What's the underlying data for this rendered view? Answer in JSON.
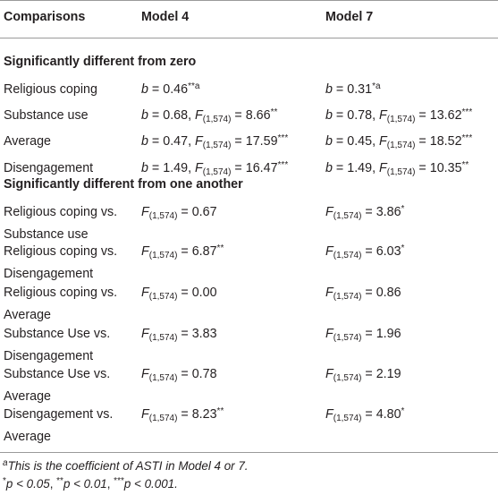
{
  "headers": [
    "Comparisons",
    "Model 4",
    "Model 7"
  ],
  "sections": [
    {
      "title": "Significantly different from zero",
      "rows": [
        {
          "label": [
            "Religious coping"
          ],
          "m4": {
            "var": "b",
            "val": "0.46",
            "sup": "**a"
          },
          "m7": {
            "var": "b",
            "val": "0.31",
            "sup": "*a"
          }
        },
        {
          "label": [
            "Substance use"
          ],
          "m4": {
            "var": "b",
            "val": "0.68",
            "F": "(1,574)",
            "fval": "8.66",
            "sup": "**"
          },
          "m7": {
            "var": "b",
            "val": "0.78",
            "F": "(1,574)",
            "fval": "13.62",
            "sup": "***"
          }
        },
        {
          "label": [
            "Average"
          ],
          "m4": {
            "var": "b",
            "val": "0.47",
            "F": "(1,574)",
            "fval": "17.59",
            "sup": "***"
          },
          "m7": {
            "var": "b",
            "val": "0.45",
            "F": "(1,574)",
            "fval": "18.52",
            "sup": "***"
          }
        },
        {
          "label": [
            "Disengagement"
          ],
          "m4": {
            "var": "b",
            "val": "1.49",
            "F": "(1,574)",
            "fval": "16.47",
            "sup": "***"
          },
          "m7": {
            "var": "b",
            "val": "1.49",
            "F": "(1,574)",
            "fval": "10.35",
            "sup": "**"
          }
        }
      ]
    },
    {
      "title": "Significantly different from one another",
      "rows": [
        {
          "label": [
            "Religious coping vs.",
            "Substance use"
          ],
          "m4": {
            "F": "(1,574)",
            "fval": "0.67",
            "sup": ""
          },
          "m7": {
            "F": "(1,574)",
            "fval": "3.86",
            "sup": "*"
          }
        },
        {
          "label": [
            "Religious coping vs.",
            "Disengagement"
          ],
          "m4": {
            "F": "(1,574)",
            "fval": "6.87",
            "sup": "**"
          },
          "m7": {
            "F": "(1,574)",
            "fval": "6.03",
            "sup": "*"
          }
        },
        {
          "label": [
            "Religious coping vs.",
            "Average"
          ],
          "m4": {
            "F": "(1,574)",
            "fval": "0.00",
            "sup": ""
          },
          "m7": {
            "F": "(1,574)",
            "fval": "0.86",
            "sup": ""
          }
        },
        {
          "label": [
            "Substance Use vs.",
            "Disengagement"
          ],
          "m4": {
            "F": "(1,574)",
            "fval": "3.83",
            "sup": ""
          },
          "m7": {
            "F": "(1,574)",
            "fval": "1.96",
            "sup": ""
          }
        },
        {
          "label": [
            "Substance Use vs.",
            "Average"
          ],
          "m4": {
            "F": "(1,574)",
            "fval": "0.78",
            "sup": ""
          },
          "m7": {
            "F": "(1,574)",
            "fval": "2.19",
            "sup": ""
          }
        },
        {
          "label": [
            "Disengagement vs.",
            "Average"
          ],
          "m4": {
            "F": "(1,574)",
            "fval": "8.23",
            "sup": "**"
          },
          "m7": {
            "F": "(1,574)",
            "fval": "4.80",
            "sup": "*"
          }
        }
      ]
    }
  ],
  "footnotes": {
    "a_marker": "a",
    "a_text": "This is the coefficient of ASTI in Model 4 or 7.",
    "sig": [
      {
        "stars": "*",
        "var": "p",
        "op": " < ",
        "val": "0.05"
      },
      {
        "stars": "**",
        "var": "p",
        "op": " < ",
        "val": "0.01"
      },
      {
        "stars": "***",
        "var": "p",
        "op": " < ",
        "val": "0.001"
      }
    ]
  }
}
